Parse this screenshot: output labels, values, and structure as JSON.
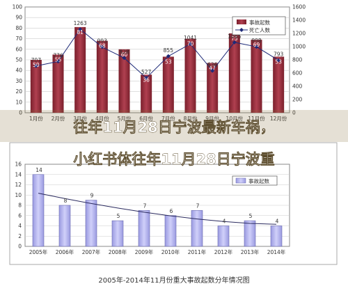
{
  "banner": {
    "line1": "往年11月28日宁波最新车祸，",
    "line2": "小红书体往年11月28日宁波重"
  },
  "colors": {
    "bar_top": "#9b2d3a",
    "line_top": "#1e2a78",
    "bar_bottom": "#b4b4f0",
    "line_bottom": "#2a2a5e",
    "banner": "#8a7040"
  },
  "chart_data": [
    {
      "type": "bar",
      "categories": [
        "1月份",
        "2月份",
        "3月份",
        "4月份",
        "5月份",
        "6月份",
        "7月份",
        "8月份",
        "9月份",
        "10月份",
        "11月份",
        "12月份"
      ],
      "series": [
        {
          "name": "事故起数",
          "kind": "bar",
          "axis": "left",
          "values": [
            50,
            55,
            81,
            68,
            60,
            36,
            53,
            70,
            47,
            75,
            69,
            53
          ]
        },
        {
          "name": "死亡人数",
          "kind": "line",
          "axis": "right",
          "values": [
            707,
            776,
            1263,
            993,
            828,
            527,
            855,
            1041,
            636,
            1065,
            998,
            793
          ]
        }
      ],
      "left_ticks": [
        "0",
        "10",
        "20",
        "30",
        "40",
        "50",
        "60",
        "70",
        "80",
        "90",
        "100"
      ],
      "right_ticks": [
        "0",
        "200",
        "400",
        "600",
        "800",
        "1000",
        "1200",
        "1400",
        "1600"
      ],
      "ylim_left": [
        0,
        100
      ],
      "ylim_right": [
        0,
        1600
      ],
      "legend_position": "top-right",
      "grid": true
    },
    {
      "type": "bar",
      "categories": [
        "2005年",
        "2006年",
        "2007年",
        "2008年",
        "2009年",
        "2010年",
        "2011年",
        "2012年",
        "2013年",
        "2014年"
      ],
      "series": [
        {
          "name": "事故起数",
          "kind": "bar",
          "values": [
            14,
            8,
            9,
            5,
            7,
            6,
            7,
            4,
            5,
            4
          ]
        }
      ],
      "trend_end": 4.3,
      "yticks": [
        "0",
        "2",
        "4",
        "6",
        "8",
        "10",
        "12",
        "14",
        "16"
      ],
      "ylim": [
        0,
        16
      ],
      "legend_position": "top-right",
      "grid": true,
      "title": "2005年-2014年11月份重大事故起数分年情况图"
    }
  ]
}
